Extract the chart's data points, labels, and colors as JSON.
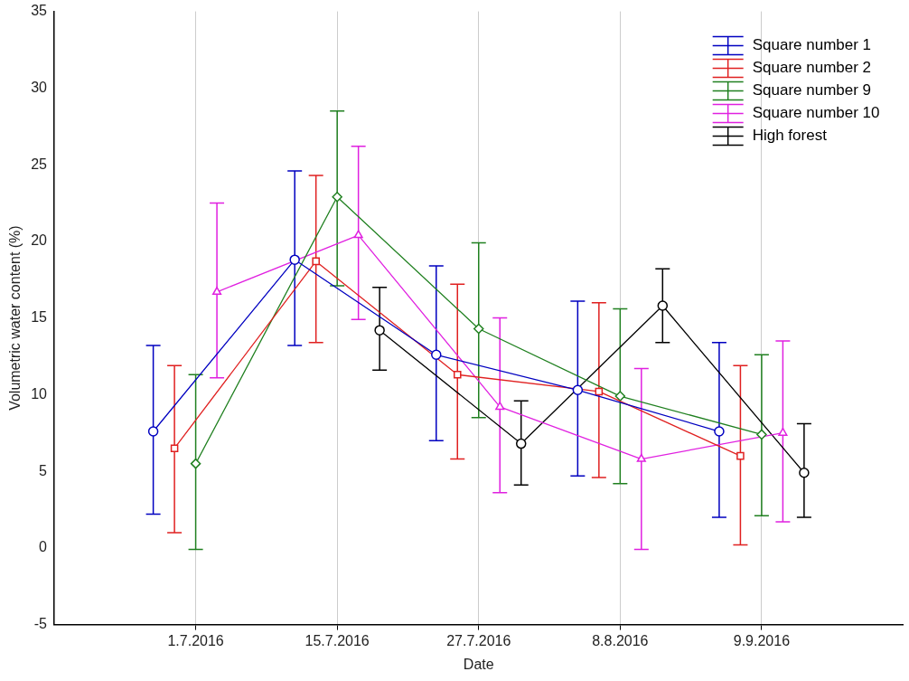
{
  "chart_data": {
    "type": "line",
    "xlabel": "Date",
    "ylabel": "Volumetric water content (%)",
    "categories": [
      "1.7.2016",
      "15.7.2016",
      "27.7.2016",
      "8.8.2016",
      "9.9.2016"
    ],
    "ylim": [
      -5,
      35
    ],
    "yticks": [
      -5,
      0,
      5,
      10,
      15,
      20,
      25,
      30,
      35
    ],
    "grid": "x",
    "legend": "top right",
    "line_style": "solid",
    "series": [
      {
        "name": "Square number 1",
        "color": "#0000c0",
        "marker": "circle",
        "values": [
          7.6,
          18.8,
          12.6,
          10.3,
          7.6
        ],
        "errors": [
          [
            2.2,
            13.2
          ],
          [
            13.2,
            24.6
          ],
          [
            7.0,
            18.4
          ],
          [
            4.7,
            16.1
          ],
          [
            2.0,
            13.4
          ]
        ]
      },
      {
        "name": "Square number 2",
        "color": "#e02020",
        "marker": "square",
        "values": [
          6.5,
          18.7,
          11.3,
          10.2,
          6.0
        ],
        "errors": [
          [
            1.0,
            11.9
          ],
          [
            13.4,
            24.3
          ],
          [
            5.8,
            17.2
          ],
          [
            4.6,
            16.0
          ],
          [
            0.2,
            11.9
          ]
        ]
      },
      {
        "name": "Square number 9",
        "color": "#208020",
        "marker": "diamond",
        "values": [
          5.5,
          22.9,
          14.3,
          9.9,
          7.4
        ],
        "errors": [
          [
            -0.1,
            11.3
          ],
          [
            17.1,
            28.5
          ],
          [
            8.5,
            19.9
          ],
          [
            4.2,
            15.6
          ],
          [
            2.1,
            12.6
          ]
        ]
      },
      {
        "name": "Square number 10",
        "color": "#e020e0",
        "marker": "triangle",
        "values": [
          16.7,
          20.4,
          9.2,
          5.8,
          7.5
        ],
        "errors": [
          [
            11.1,
            22.5
          ],
          [
            14.9,
            26.2
          ],
          [
            3.6,
            15.0
          ],
          [
            -0.1,
            11.7
          ],
          [
            1.7,
            13.5
          ]
        ]
      },
      {
        "name": "High forest",
        "color": "#000000",
        "marker": "circle",
        "values": [
          null,
          14.2,
          6.8,
          15.8,
          4.9
        ],
        "errors": [
          null,
          [
            11.6,
            17.0
          ],
          [
            4.1,
            9.6
          ],
          [
            13.4,
            18.2
          ],
          [
            2.0,
            8.1
          ]
        ]
      }
    ]
  }
}
